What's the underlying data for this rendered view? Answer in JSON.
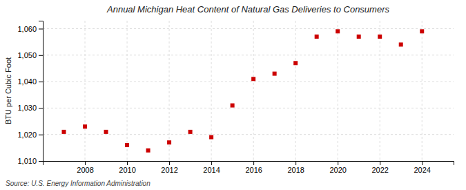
{
  "chart_data": {
    "type": "scatter",
    "title": "Annual Michigan Heat Content of Natural Gas Deliveries to Consumers",
    "ylabel": "BTU per Cubic Foot",
    "annotations": [
      "Source: U.S. Energy Information Administration"
    ],
    "x": [
      2007,
      2008,
      2009,
      2010,
      2011,
      2012,
      2013,
      2014,
      2015,
      2016,
      2017,
      2018,
      2019,
      2020,
      2021,
      2022,
      2023,
      2024
    ],
    "values": [
      1021,
      1023,
      1021,
      1016,
      1014,
      1017,
      1021,
      1019,
      1031,
      1041,
      1043,
      1047,
      1057,
      1059,
      1057,
      1057,
      1054,
      1059
    ],
    "color": "#cc0000",
    "marker": "square",
    "grid": true,
    "xlim": [
      2006.0,
      2025.5
    ],
    "xticks": [
      2008,
      2010,
      2012,
      2014,
      2016,
      2018,
      2020,
      2022,
      2024
    ],
    "ylim": [
      1010,
      1063
    ],
    "yticks": [
      {
        "value": 1010,
        "label": "1,010"
      },
      {
        "value": 1020,
        "label": "1,020"
      },
      {
        "value": 1030,
        "label": "1,030"
      },
      {
        "value": 1040,
        "label": "1,040"
      },
      {
        "value": 1050,
        "label": "1,050"
      },
      {
        "value": 1060,
        "label": "1,060"
      }
    ]
  }
}
